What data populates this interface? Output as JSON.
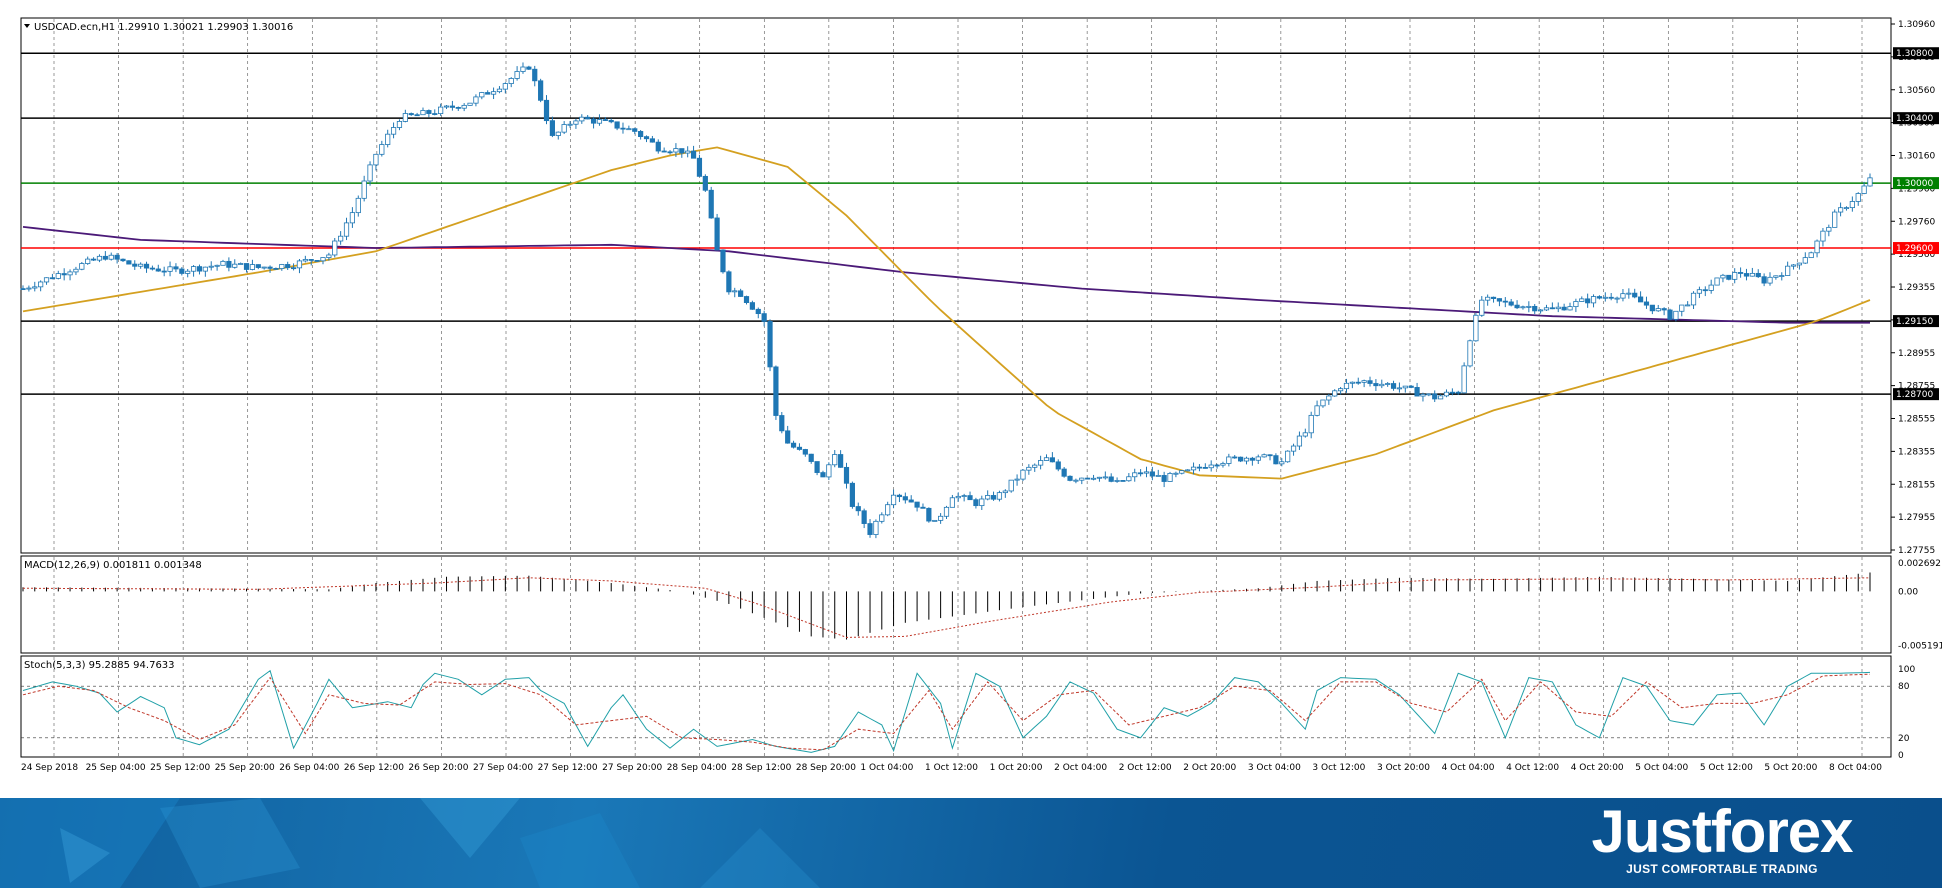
{
  "chart_data": {
    "type": "candlestick",
    "symbol_header": "USDCAD.ecn,H1  1.29910 1.30021 1.29903 1.30016",
    "price_axis_ticks": [
      "1.30960",
      "1.30760",
      "1.30560",
      "1.30360",
      "1.30160",
      "1.29960",
      "1.29760",
      "1.29560",
      "1.29355",
      "1.29155",
      "1.28955",
      "1.28755",
      "1.28555",
      "1.28355",
      "1.28155",
      "1.27955",
      "1.27755"
    ],
    "ylim": [
      1.2774,
      1.3098
    ],
    "time_axis_labels": [
      "24 Sep 2018",
      "25 Sep 04:00",
      "25 Sep 12:00",
      "25 Sep 20:00",
      "26 Sep 04:00",
      "26 Sep 12:00",
      "26 Sep 20:00",
      "27 Sep 04:00",
      "27 Sep 12:00",
      "27 Sep 20:00",
      "28 Sep 04:00",
      "28 Sep 12:00",
      "28 Sep 20:00",
      "1 Oct 04:00",
      "1 Oct 12:00",
      "1 Oct 20:00",
      "2 Oct 04:00",
      "2 Oct 12:00",
      "2 Oct 20:00",
      "3 Oct 04:00",
      "3 Oct 12:00",
      "3 Oct 20:00",
      "4 Oct 04:00",
      "4 Oct 12:00",
      "4 Oct 20:00",
      "5 Oct 04:00",
      "5 Oct 12:00",
      "5 Oct 20:00",
      "8 Oct 04:00"
    ],
    "levels": [
      {
        "value": 1.308,
        "label": "1.30800",
        "color": "#000000"
      },
      {
        "value": 1.304,
        "label": "1.30400",
        "color": "#000000"
      },
      {
        "value": 1.3,
        "label": "1.30000",
        "color": "#008000"
      },
      {
        "value": 1.296,
        "label": "1.29600",
        "color": "#ff0000"
      },
      {
        "value": 1.2915,
        "label": "1.29150",
        "color": "#000000"
      },
      {
        "value": 1.287,
        "label": "1.28700",
        "color": "#000000"
      }
    ],
    "candle_color": "#1f77b4",
    "close_path": [
      [
        0,
        1.2935
      ],
      [
        8,
        1.2947
      ],
      [
        14,
        1.2955
      ],
      [
        20,
        1.2948
      ],
      [
        26,
        1.2946
      ],
      [
        34,
        1.295
      ],
      [
        40,
        1.2948
      ],
      [
        46,
        1.295
      ],
      [
        52,
        1.2956
      ],
      [
        56,
        1.2982
      ],
      [
        60,
        1.3018
      ],
      [
        64,
        1.304
      ],
      [
        70,
        1.3044
      ],
      [
        76,
        1.305
      ],
      [
        82,
        1.3062
      ],
      [
        86,
        1.3072
      ],
      [
        88,
        1.3052
      ],
      [
        90,
        1.3028
      ],
      [
        94,
        1.304
      ],
      [
        98,
        1.3038
      ],
      [
        104,
        1.3032
      ],
      [
        108,
        1.3022
      ],
      [
        112,
        1.302
      ],
      [
        114,
        1.3015
      ],
      [
        116,
        1.2995
      ],
      [
        118,
        1.2958
      ],
      [
        120,
        1.2935
      ],
      [
        122,
        1.2932
      ],
      [
        125,
        1.292
      ],
      [
        126,
        1.2915
      ],
      [
        128,
        1.2857
      ],
      [
        130,
        1.284
      ],
      [
        133,
        1.2832
      ],
      [
        136,
        1.2818
      ],
      [
        138,
        1.2835
      ],
      [
        141,
        1.2802
      ],
      [
        144,
        1.2785
      ],
      [
        148,
        1.281
      ],
      [
        152,
        1.2802
      ],
      [
        155,
        1.279
      ],
      [
        158,
        1.2808
      ],
      [
        162,
        1.2803
      ],
      [
        166,
        1.2808
      ],
      [
        170,
        1.2822
      ],
      [
        174,
        1.283
      ],
      [
        178,
        1.2818
      ],
      [
        182,
        1.282
      ],
      [
        186,
        1.2815
      ],
      [
        190,
        1.2822
      ],
      [
        194,
        1.2818
      ],
      [
        198,
        1.2822
      ],
      [
        202,
        1.2828
      ],
      [
        206,
        1.283
      ],
      [
        210,
        1.2832
      ],
      [
        214,
        1.2828
      ],
      [
        218,
        1.2848
      ],
      [
        220,
        1.2862
      ],
      [
        224,
        1.2875
      ],
      [
        228,
        1.2878
      ],
      [
        232,
        1.2876
      ],
      [
        236,
        1.2872
      ],
      [
        240,
        1.2868
      ],
      [
        244,
        1.2872
      ],
      [
        246,
        1.2905
      ],
      [
        248,
        1.2928
      ],
      [
        254,
        1.2925
      ],
      [
        260,
        1.2922
      ],
      [
        266,
        1.2928
      ],
      [
        272,
        1.2932
      ],
      [
        276,
        1.2925
      ],
      [
        280,
        1.2918
      ],
      [
        284,
        1.293
      ],
      [
        288,
        1.294
      ],
      [
        292,
        1.2945
      ],
      [
        296,
        1.294
      ],
      [
        300,
        1.2947
      ],
      [
        304,
        1.2958
      ],
      [
        308,
        1.298
      ],
      [
        312,
        1.2993
      ],
      [
        314,
        1.3002
      ]
    ],
    "ma_slow": {
      "color": "#4b1a78",
      "points": [
        [
          0,
          1.2973
        ],
        [
          20,
          1.2965
        ],
        [
          60,
          1.296
        ],
        [
          100,
          1.2962
        ],
        [
          120,
          1.2958
        ],
        [
          150,
          1.2945
        ],
        [
          180,
          1.2935
        ],
        [
          210,
          1.2928
        ],
        [
          240,
          1.2922
        ],
        [
          260,
          1.2918
        ],
        [
          300,
          1.2914
        ],
        [
          314,
          1.2914
        ]
      ]
    },
    "ma_fast": {
      "color": "#d4a020",
      "points": [
        [
          0,
          1.2921
        ],
        [
          20,
          1.2933
        ],
        [
          40,
          1.2945
        ],
        [
          60,
          1.2958
        ],
        [
          80,
          1.2983
        ],
        [
          100,
          1.3008
        ],
        [
          110,
          1.3017
        ],
        [
          118,
          1.3022
        ],
        [
          130,
          1.301
        ],
        [
          140,
          1.298
        ],
        [
          155,
          1.2925
        ],
        [
          175,
          1.286
        ],
        [
          190,
          1.283
        ],
        [
          200,
          1.282
        ],
        [
          214,
          1.2818
        ],
        [
          230,
          1.2833
        ],
        [
          250,
          1.286
        ],
        [
          270,
          1.288
        ],
        [
          290,
          1.29
        ],
        [
          305,
          1.2915
        ],
        [
          314,
          1.2928
        ]
      ]
    },
    "macd": {
      "label": "MACD(12,26,9) 0.001811 0.001348",
      "ticks": [
        "0.002692",
        "0.00",
        "-0.005191"
      ],
      "ylim": [
        -0.0056,
        0.003
      ],
      "histogram_path": [
        [
          0,
          0.0004
        ],
        [
          30,
          0.0003
        ],
        [
          52,
          0.0002
        ],
        [
          60,
          0.0008
        ],
        [
          72,
          0.0014
        ],
        [
          86,
          0.0015
        ],
        [
          100,
          0.0008
        ],
        [
          112,
          0.0
        ],
        [
          120,
          -0.0012
        ],
        [
          134,
          -0.0043
        ],
        [
          140,
          -0.0046
        ],
        [
          150,
          -0.003
        ],
        [
          170,
          -0.0015
        ],
        [
          190,
          -0.0002
        ],
        [
          210,
          0.0003
        ],
        [
          220,
          0.001
        ],
        [
          234,
          0.0013
        ],
        [
          250,
          0.0012
        ],
        [
          268,
          0.0014
        ],
        [
          285,
          0.0012
        ],
        [
          300,
          0.001
        ],
        [
          314,
          0.0018
        ]
      ],
      "signal_path": [
        [
          0,
          0.0003
        ],
        [
          40,
          0.0002
        ],
        [
          70,
          0.0008
        ],
        [
          86,
          0.0013
        ],
        [
          100,
          0.001
        ],
        [
          116,
          0.0003
        ],
        [
          125,
          -0.0012
        ],
        [
          140,
          -0.0044
        ],
        [
          150,
          -0.0043
        ],
        [
          165,
          -0.0028
        ],
        [
          185,
          -0.001
        ],
        [
          200,
          -0.0001
        ],
        [
          220,
          0.0004
        ],
        [
          240,
          0.0011
        ],
        [
          268,
          0.0012
        ],
        [
          290,
          0.0011
        ],
        [
          314,
          0.0013
        ]
      ]
    },
    "stoch": {
      "label": "Stoch(5,3,3) 95.2885 94.7633",
      "ticks": [
        "100",
        "80",
        "20",
        "0"
      ],
      "ylim": [
        0,
        100
      ],
      "levels": [
        80,
        20
      ],
      "k_path": [
        [
          0,
          75
        ],
        [
          5,
          85
        ],
        [
          9,
          80
        ],
        [
          13,
          72
        ],
        [
          16,
          50
        ],
        [
          20,
          68
        ],
        [
          24,
          55
        ],
        [
          26,
          20
        ],
        [
          30,
          12
        ],
        [
          35,
          30
        ],
        [
          40,
          88
        ],
        [
          42,
          98
        ],
        [
          46,
          8
        ],
        [
          50,
          60
        ],
        [
          52,
          88
        ],
        [
          56,
          55
        ],
        [
          62,
          62
        ],
        [
          66,
          55
        ],
        [
          68,
          82
        ],
        [
          70,
          95
        ],
        [
          74,
          88
        ],
        [
          78,
          70
        ],
        [
          82,
          88
        ],
        [
          86,
          90
        ],
        [
          88,
          75
        ],
        [
          92,
          60
        ],
        [
          96,
          10
        ],
        [
          100,
          55
        ],
        [
          102,
          70
        ],
        [
          106,
          30
        ],
        [
          110,
          8
        ],
        [
          114,
          30
        ],
        [
          118,
          10
        ],
        [
          124,
          18
        ],
        [
          128,
          10
        ],
        [
          134,
          3
        ],
        [
          138,
          10
        ],
        [
          142,
          50
        ],
        [
          146,
          35
        ],
        [
          148,
          5
        ],
        [
          152,
          95
        ],
        [
          156,
          60
        ],
        [
          158,
          8
        ],
        [
          162,
          95
        ],
        [
          166,
          80
        ],
        [
          170,
          20
        ],
        [
          174,
          45
        ],
        [
          178,
          85
        ],
        [
          182,
          72
        ],
        [
          186,
          30
        ],
        [
          190,
          20
        ],
        [
          194,
          55
        ],
        [
          198,
          45
        ],
        [
          202,
          60
        ],
        [
          206,
          90
        ],
        [
          210,
          85
        ],
        [
          214,
          60
        ],
        [
          218,
          30
        ],
        [
          220,
          75
        ],
        [
          224,
          90
        ],
        [
          230,
          88
        ],
        [
          234,
          70
        ],
        [
          238,
          40
        ],
        [
          240,
          25
        ],
        [
          244,
          95
        ],
        [
          248,
          85
        ],
        [
          252,
          20
        ],
        [
          256,
          90
        ],
        [
          260,
          85
        ],
        [
          264,
          35
        ],
        [
          268,
          20
        ],
        [
          272,
          90
        ],
        [
          276,
          80
        ],
        [
          280,
          40
        ],
        [
          284,
          35
        ],
        [
          288,
          70
        ],
        [
          292,
          72
        ],
        [
          296,
          35
        ],
        [
          300,
          80
        ],
        [
          304,
          95
        ],
        [
          308,
          95
        ],
        [
          314,
          96
        ]
      ],
      "d_path": [
        [
          0,
          70
        ],
        [
          6,
          80
        ],
        [
          12,
          75
        ],
        [
          18,
          55
        ],
        [
          24,
          40
        ],
        [
          30,
          18
        ],
        [
          36,
          35
        ],
        [
          42,
          90
        ],
        [
          48,
          25
        ],
        [
          52,
          70
        ],
        [
          58,
          60
        ],
        [
          64,
          58
        ],
        [
          70,
          85
        ],
        [
          76,
          82
        ],
        [
          82,
          83
        ],
        [
          88,
          70
        ],
        [
          94,
          35
        ],
        [
          100,
          40
        ],
        [
          106,
          45
        ],
        [
          112,
          20
        ],
        [
          118,
          18
        ],
        [
          124,
          15
        ],
        [
          130,
          8
        ],
        [
          136,
          6
        ],
        [
          142,
          30
        ],
        [
          148,
          25
        ],
        [
          154,
          75
        ],
        [
          158,
          30
        ],
        [
          164,
          85
        ],
        [
          170,
          40
        ],
        [
          176,
          70
        ],
        [
          182,
          75
        ],
        [
          188,
          35
        ],
        [
          194,
          45
        ],
        [
          200,
          55
        ],
        [
          206,
          80
        ],
        [
          212,
          75
        ],
        [
          218,
          40
        ],
        [
          224,
          85
        ],
        [
          230,
          85
        ],
        [
          236,
          60
        ],
        [
          242,
          50
        ],
        [
          248,
          88
        ],
        [
          252,
          40
        ],
        [
          258,
          85
        ],
        [
          264,
          50
        ],
        [
          270,
          45
        ],
        [
          276,
          85
        ],
        [
          282,
          55
        ],
        [
          288,
          60
        ],
        [
          294,
          60
        ],
        [
          300,
          70
        ],
        [
          306,
          92
        ],
        [
          314,
          94
        ]
      ]
    }
  },
  "banner": {
    "brand_name": "Justforex",
    "tagline": "JUST COMFORTABLE TRADING"
  }
}
